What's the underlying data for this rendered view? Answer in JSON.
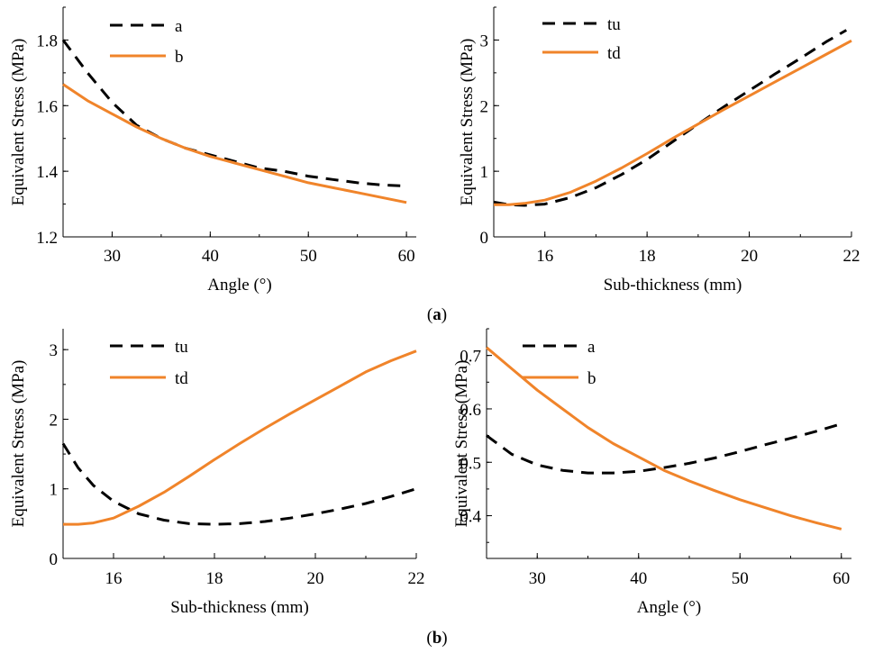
{
  "figure": {
    "caption_a": "a",
    "caption_b": "b"
  },
  "colors": {
    "dashed": "#000000",
    "solid": "#f0842a"
  },
  "chart_data": [
    {
      "id": "a-left",
      "type": "line",
      "xlabel": "Angle (°)",
      "ylabel": "Equivalent Stress (MPa)",
      "xlim": [
        25,
        61
      ],
      "ylim": [
        1.2,
        1.9
      ],
      "xticks": [
        30,
        40,
        50,
        60
      ],
      "yticks": [
        1.2,
        1.4,
        1.6,
        1.8
      ],
      "tick_labels_x": [
        "30",
        "40",
        "50",
        "60"
      ],
      "tick_labels_y": [
        "1.2",
        "1.4",
        "1.6",
        "1.8"
      ],
      "legend": "top-left",
      "series": [
        {
          "name": "a",
          "style": "dashed",
          "x": [
            25,
            27.5,
            30,
            32.5,
            35,
            37.5,
            40,
            42.5,
            45,
            47.5,
            50,
            52.5,
            55,
            57.5,
            60
          ],
          "y": [
            1.8,
            1.7,
            1.61,
            1.54,
            1.5,
            1.47,
            1.45,
            1.43,
            1.41,
            1.4,
            1.385,
            1.375,
            1.365,
            1.358,
            1.355
          ]
        },
        {
          "name": "b",
          "style": "solid",
          "x": [
            25,
            27.5,
            30,
            32.5,
            35,
            37.5,
            40,
            42.5,
            45,
            47.5,
            50,
            52.5,
            55,
            57.5,
            60
          ],
          "y": [
            1.665,
            1.615,
            1.575,
            1.535,
            1.5,
            1.47,
            1.445,
            1.425,
            1.405,
            1.385,
            1.365,
            1.35,
            1.335,
            1.32,
            1.305
          ]
        }
      ]
    },
    {
      "id": "a-right",
      "type": "line",
      "xlabel": "Sub-thickness (mm)",
      "ylabel": "Equivalent Stress (MPa)",
      "xlim": [
        15,
        22
      ],
      "ylim": [
        0,
        3.5
      ],
      "xticks": [
        16,
        18,
        20,
        22
      ],
      "yticks": [
        0,
        1,
        2,
        3
      ],
      "tick_labels_x": [
        "16",
        "18",
        "20",
        "22"
      ],
      "tick_labels_y": [
        "0",
        "1",
        "2",
        "3"
      ],
      "legend": "top-left",
      "series": [
        {
          "name": "tu",
          "style": "dashed",
          "x": [
            15,
            15.3,
            15.6,
            16,
            16.5,
            17,
            17.5,
            18,
            18.5,
            19,
            19.5,
            20,
            20.5,
            21,
            21.5,
            21.9
          ],
          "y": [
            0.53,
            0.49,
            0.48,
            0.5,
            0.6,
            0.75,
            0.95,
            1.18,
            1.45,
            1.72,
            1.98,
            2.23,
            2.48,
            2.72,
            2.97,
            3.15
          ]
        },
        {
          "name": "td",
          "style": "solid",
          "x": [
            15,
            15.3,
            15.6,
            16,
            16.5,
            17,
            17.5,
            18,
            18.5,
            19,
            19.5,
            20,
            20.5,
            21,
            21.5,
            22
          ],
          "y": [
            0.49,
            0.49,
            0.51,
            0.56,
            0.68,
            0.85,
            1.05,
            1.27,
            1.5,
            1.72,
            1.94,
            2.15,
            2.36,
            2.57,
            2.78,
            2.99
          ]
        }
      ]
    },
    {
      "id": "b-left",
      "type": "line",
      "xlabel": "Sub-thickness (mm)",
      "ylabel": "Equivalent Stress (MPa)",
      "xlim": [
        15,
        22
      ],
      "ylim": [
        0,
        3.3
      ],
      "xticks": [
        16,
        18,
        20,
        22
      ],
      "yticks": [
        0,
        1,
        2,
        3
      ],
      "tick_labels_x": [
        "16",
        "18",
        "20",
        "22"
      ],
      "tick_labels_y": [
        "0",
        "1",
        "2",
        "3"
      ],
      "legend": "top-left",
      "series": [
        {
          "name": "tu",
          "style": "dashed",
          "x": [
            15,
            15.3,
            15.6,
            16,
            16.5,
            17,
            17.5,
            18,
            18.5,
            19,
            19.5,
            20,
            20.5,
            21,
            21.5,
            22
          ],
          "y": [
            1.65,
            1.3,
            1.05,
            0.82,
            0.64,
            0.55,
            0.5,
            0.49,
            0.5,
            0.53,
            0.58,
            0.64,
            0.71,
            0.79,
            0.89,
            1.0
          ]
        },
        {
          "name": "td",
          "style": "solid",
          "x": [
            15,
            15.3,
            15.6,
            16,
            16.5,
            17,
            17.5,
            18,
            18.5,
            19,
            19.5,
            20,
            20.5,
            21,
            21.5,
            22
          ],
          "y": [
            0.49,
            0.49,
            0.51,
            0.58,
            0.75,
            0.95,
            1.18,
            1.42,
            1.65,
            1.87,
            2.08,
            2.28,
            2.48,
            2.68,
            2.84,
            2.98
          ]
        }
      ]
    },
    {
      "id": "b-right",
      "type": "line",
      "xlabel": "Angle (°)",
      "ylabel": "Equivalent Stress (MPa)",
      "xlim": [
        25,
        61
      ],
      "ylim": [
        0.32,
        0.75
      ],
      "xticks": [
        30,
        40,
        50,
        60
      ],
      "yticks": [
        0.4,
        0.5,
        0.6,
        0.7
      ],
      "tick_labels_x": [
        "30",
        "40",
        "50",
        "60"
      ],
      "tick_labels_y": [
        "0.4",
        "0.5",
        "0.6",
        "0.7"
      ],
      "legend": "top-left",
      "series": [
        {
          "name": "a",
          "style": "dashed",
          "x": [
            25,
            27.5,
            30,
            32.5,
            35,
            37.5,
            40,
            42.5,
            45,
            47.5,
            50,
            52.5,
            55,
            57.5,
            60
          ],
          "y": [
            0.55,
            0.515,
            0.495,
            0.485,
            0.48,
            0.48,
            0.483,
            0.49,
            0.498,
            0.508,
            0.52,
            0.533,
            0.545,
            0.558,
            0.572
          ]
        },
        {
          "name": "b",
          "style": "solid",
          "x": [
            25,
            27.5,
            30,
            32.5,
            35,
            37.5,
            40,
            42.5,
            45,
            47.5,
            50,
            52.5,
            55,
            57.5,
            60
          ],
          "y": [
            0.715,
            0.675,
            0.635,
            0.6,
            0.565,
            0.535,
            0.51,
            0.485,
            0.465,
            0.447,
            0.43,
            0.415,
            0.4,
            0.387,
            0.375
          ]
        }
      ]
    }
  ]
}
